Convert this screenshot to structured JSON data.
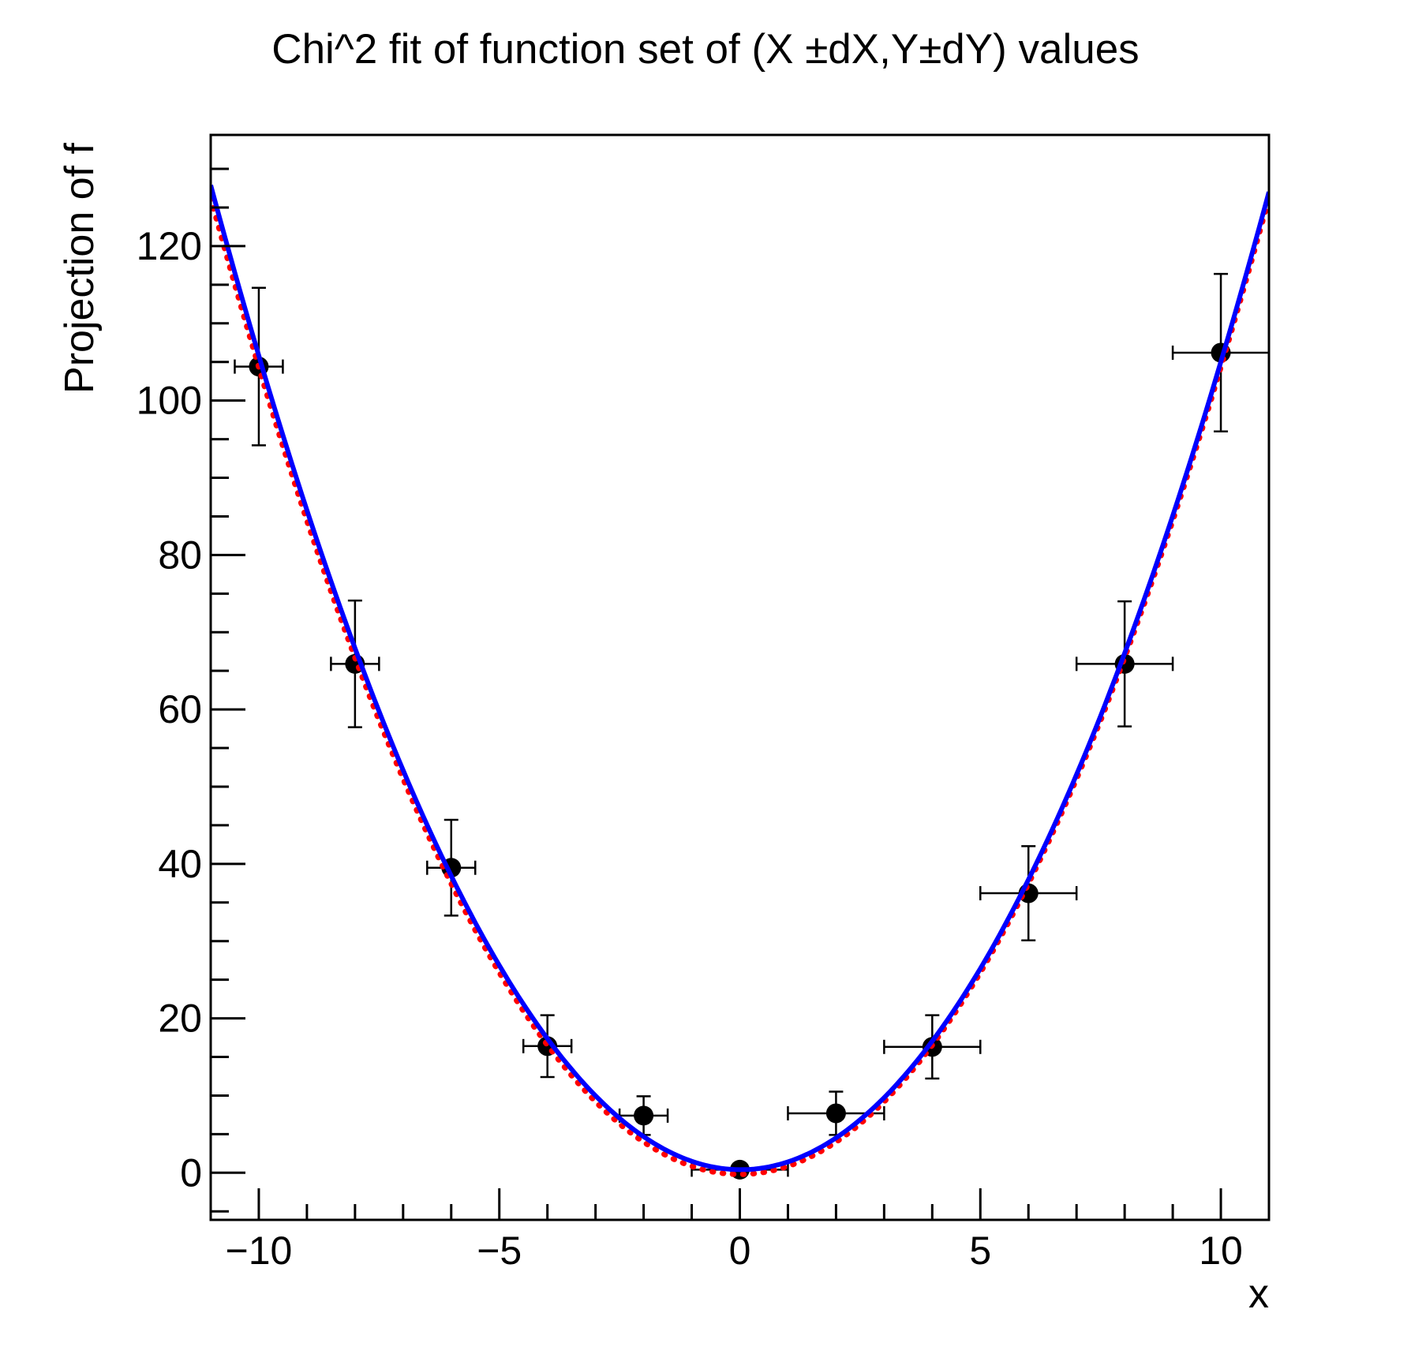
{
  "chart_data": {
    "type": "scatter",
    "title": "Chi^2 fit of function set of (X ±dX,Y±dY) values",
    "xlabel": "x",
    "ylabel": "Projection of f",
    "xlim": [
      -11,
      11
    ],
    "ylim": [
      -6.1,
      134.4
    ],
    "grid": false,
    "legend": null,
    "x_axis": {
      "major_tick_values": [
        -10,
        -5,
        0,
        5,
        10
      ],
      "major_tick_labels": [
        "−10",
        "−5",
        "0",
        "5",
        "10"
      ],
      "minor_tick_step": 1
    },
    "y_axis": {
      "major_tick_values": [
        0,
        20,
        40,
        60,
        80,
        100,
        120
      ],
      "major_tick_labels": [
        "0",
        "20",
        "40",
        "60",
        "80",
        "100",
        "120"
      ],
      "minor_tick_step": 5
    },
    "series": [
      {
        "name": "data-points-with-xy-errors",
        "type": "scatter-errorbars",
        "marker": "filled-circle",
        "color": "#000000",
        "x": [
          -10,
          -8,
          -6,
          -4,
          -2,
          0,
          2,
          4,
          6,
          8,
          10
        ],
        "y": [
          104.4,
          65.9,
          39.5,
          16.4,
          7.4,
          0.4,
          7.7,
          16.3,
          36.2,
          65.9,
          106.2
        ],
        "ex": [
          0.5,
          0.5,
          0.5,
          0.5,
          0.5,
          1.0,
          1.0,
          1.0,
          1.0,
          1.0,
          1.0
        ],
        "ey": [
          10.2,
          8.2,
          6.2,
          4.0,
          2.5,
          0.6,
          2.8,
          4.1,
          6.1,
          8.1,
          10.2
        ]
      },
      {
        "name": "fit-curve-dotted",
        "type": "curve",
        "style": "dotted",
        "color": "#ff0000",
        "poly": [
          -0.2,
          0.0,
          1.045
        ]
      },
      {
        "name": "fit-curve-solid",
        "type": "curve",
        "style": "solid",
        "color": "#0000ff",
        "poly": [
          0.4,
          -0.04,
          1.05
        ]
      }
    ]
  }
}
